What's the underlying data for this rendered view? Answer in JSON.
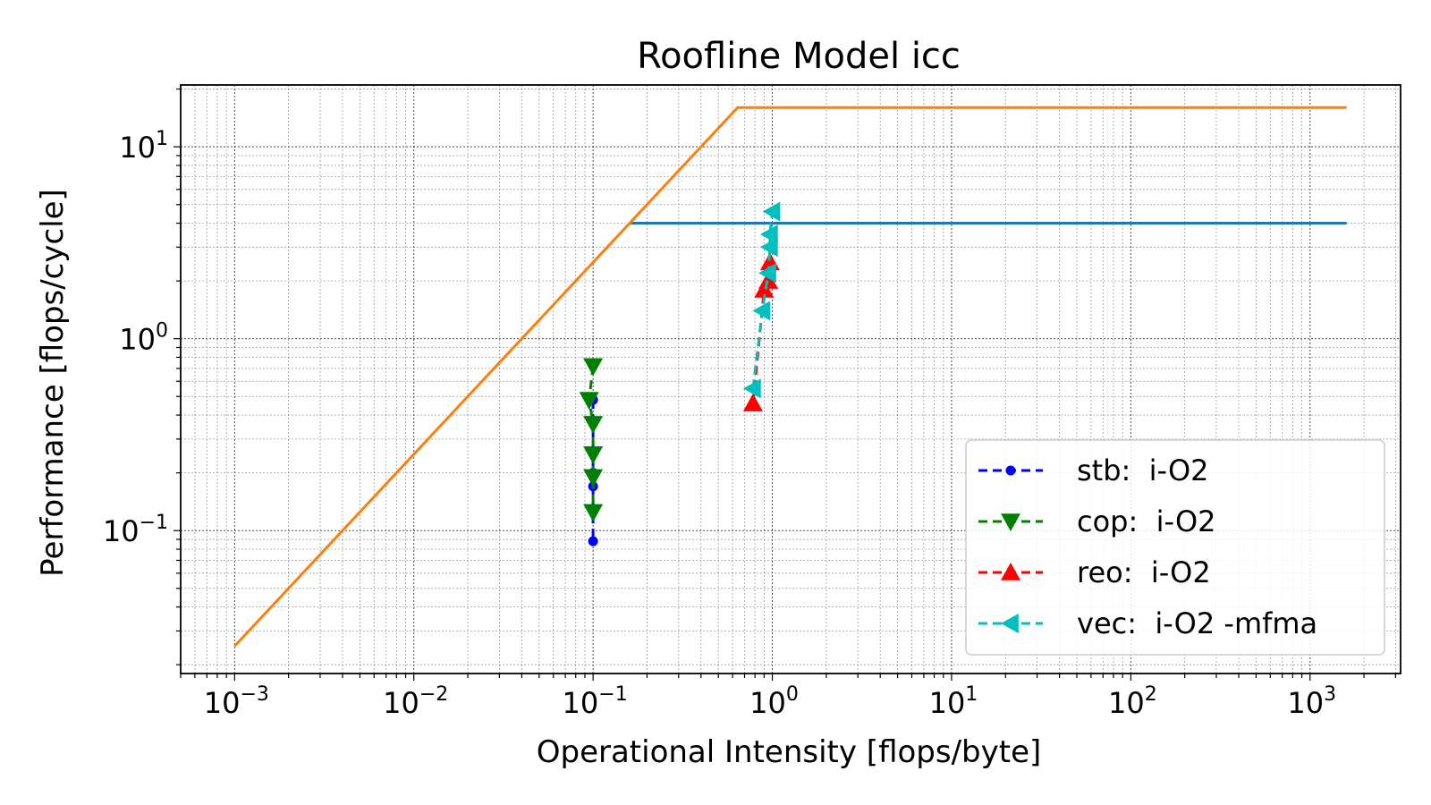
{
  "chart_data": {
    "type": "line",
    "title": "Roofline Model icc",
    "xlabel": "Operational Intensity [flops/byte]",
    "ylabel": "Performance [flops/cycle]",
    "x_scale": "log",
    "y_scale": "log",
    "xlim": [
      0.0005,
      3200
    ],
    "ylim": [
      0.018,
      21
    ],
    "grid": true,
    "legend_position": "lower right",
    "x_ticks": [
      {
        "base": "10",
        "exp": "−3",
        "value": 0.001
      },
      {
        "base": "10",
        "exp": "−2",
        "value": 0.01
      },
      {
        "base": "10",
        "exp": "−1",
        "value": 0.1
      },
      {
        "base": "10",
        "exp": "0",
        "value": 1
      },
      {
        "base": "10",
        "exp": "1",
        "value": 10
      },
      {
        "base": "10",
        "exp": "2",
        "value": 100
      },
      {
        "base": "10",
        "exp": "3",
        "value": 1000
      }
    ],
    "y_ticks": [
      {
        "base": "10",
        "exp": "−1",
        "value": 0.1
      },
      {
        "base": "10",
        "exp": "0",
        "value": 1
      },
      {
        "base": "10",
        "exp": "1",
        "value": 10
      }
    ],
    "rooflines": [
      {
        "color": "#1f77b4",
        "points": [
          [
            0.16,
            4
          ],
          [
            1600,
            4
          ]
        ]
      },
      {
        "color": "#ff7f0e",
        "points": [
          [
            0.001,
            0.025
          ],
          [
            0.64,
            16
          ],
          [
            1600,
            16
          ]
        ]
      }
    ],
    "series": [
      {
        "name": "stb:  i-O2",
        "color": "#0000ff",
        "marker": "dot",
        "points": [
          [
            0.1,
            0.48
          ],
          [
            0.1,
            0.2
          ],
          [
            0.1,
            0.17
          ],
          [
            0.1,
            0.088
          ]
        ]
      },
      {
        "name": "cop:  i-O2",
        "color": "#008000",
        "marker": "triangle-down",
        "points": [
          [
            0.1,
            0.72
          ],
          [
            0.095,
            0.48
          ],
          [
            0.1,
            0.36
          ],
          [
            0.1,
            0.25
          ],
          [
            0.1,
            0.19
          ],
          [
            0.1,
            0.125
          ]
        ]
      },
      {
        "name": "reo:  i-O2",
        "color": "#ff0000",
        "marker": "triangle-up",
        "points": [
          [
            0.78,
            0.46
          ],
          [
            0.9,
            1.8
          ],
          [
            0.95,
            2.0
          ],
          [
            0.97,
            2.5
          ]
        ]
      },
      {
        "name": "vec:  i-O2 -mfma",
        "color": "#00bfbf",
        "marker": "triangle-left",
        "points": [
          [
            0.78,
            0.55
          ],
          [
            0.88,
            1.4
          ],
          [
            0.95,
            2.2
          ],
          [
            0.97,
            3.0
          ],
          [
            0.97,
            3.5
          ],
          [
            1.0,
            4.6
          ]
        ]
      }
    ]
  }
}
